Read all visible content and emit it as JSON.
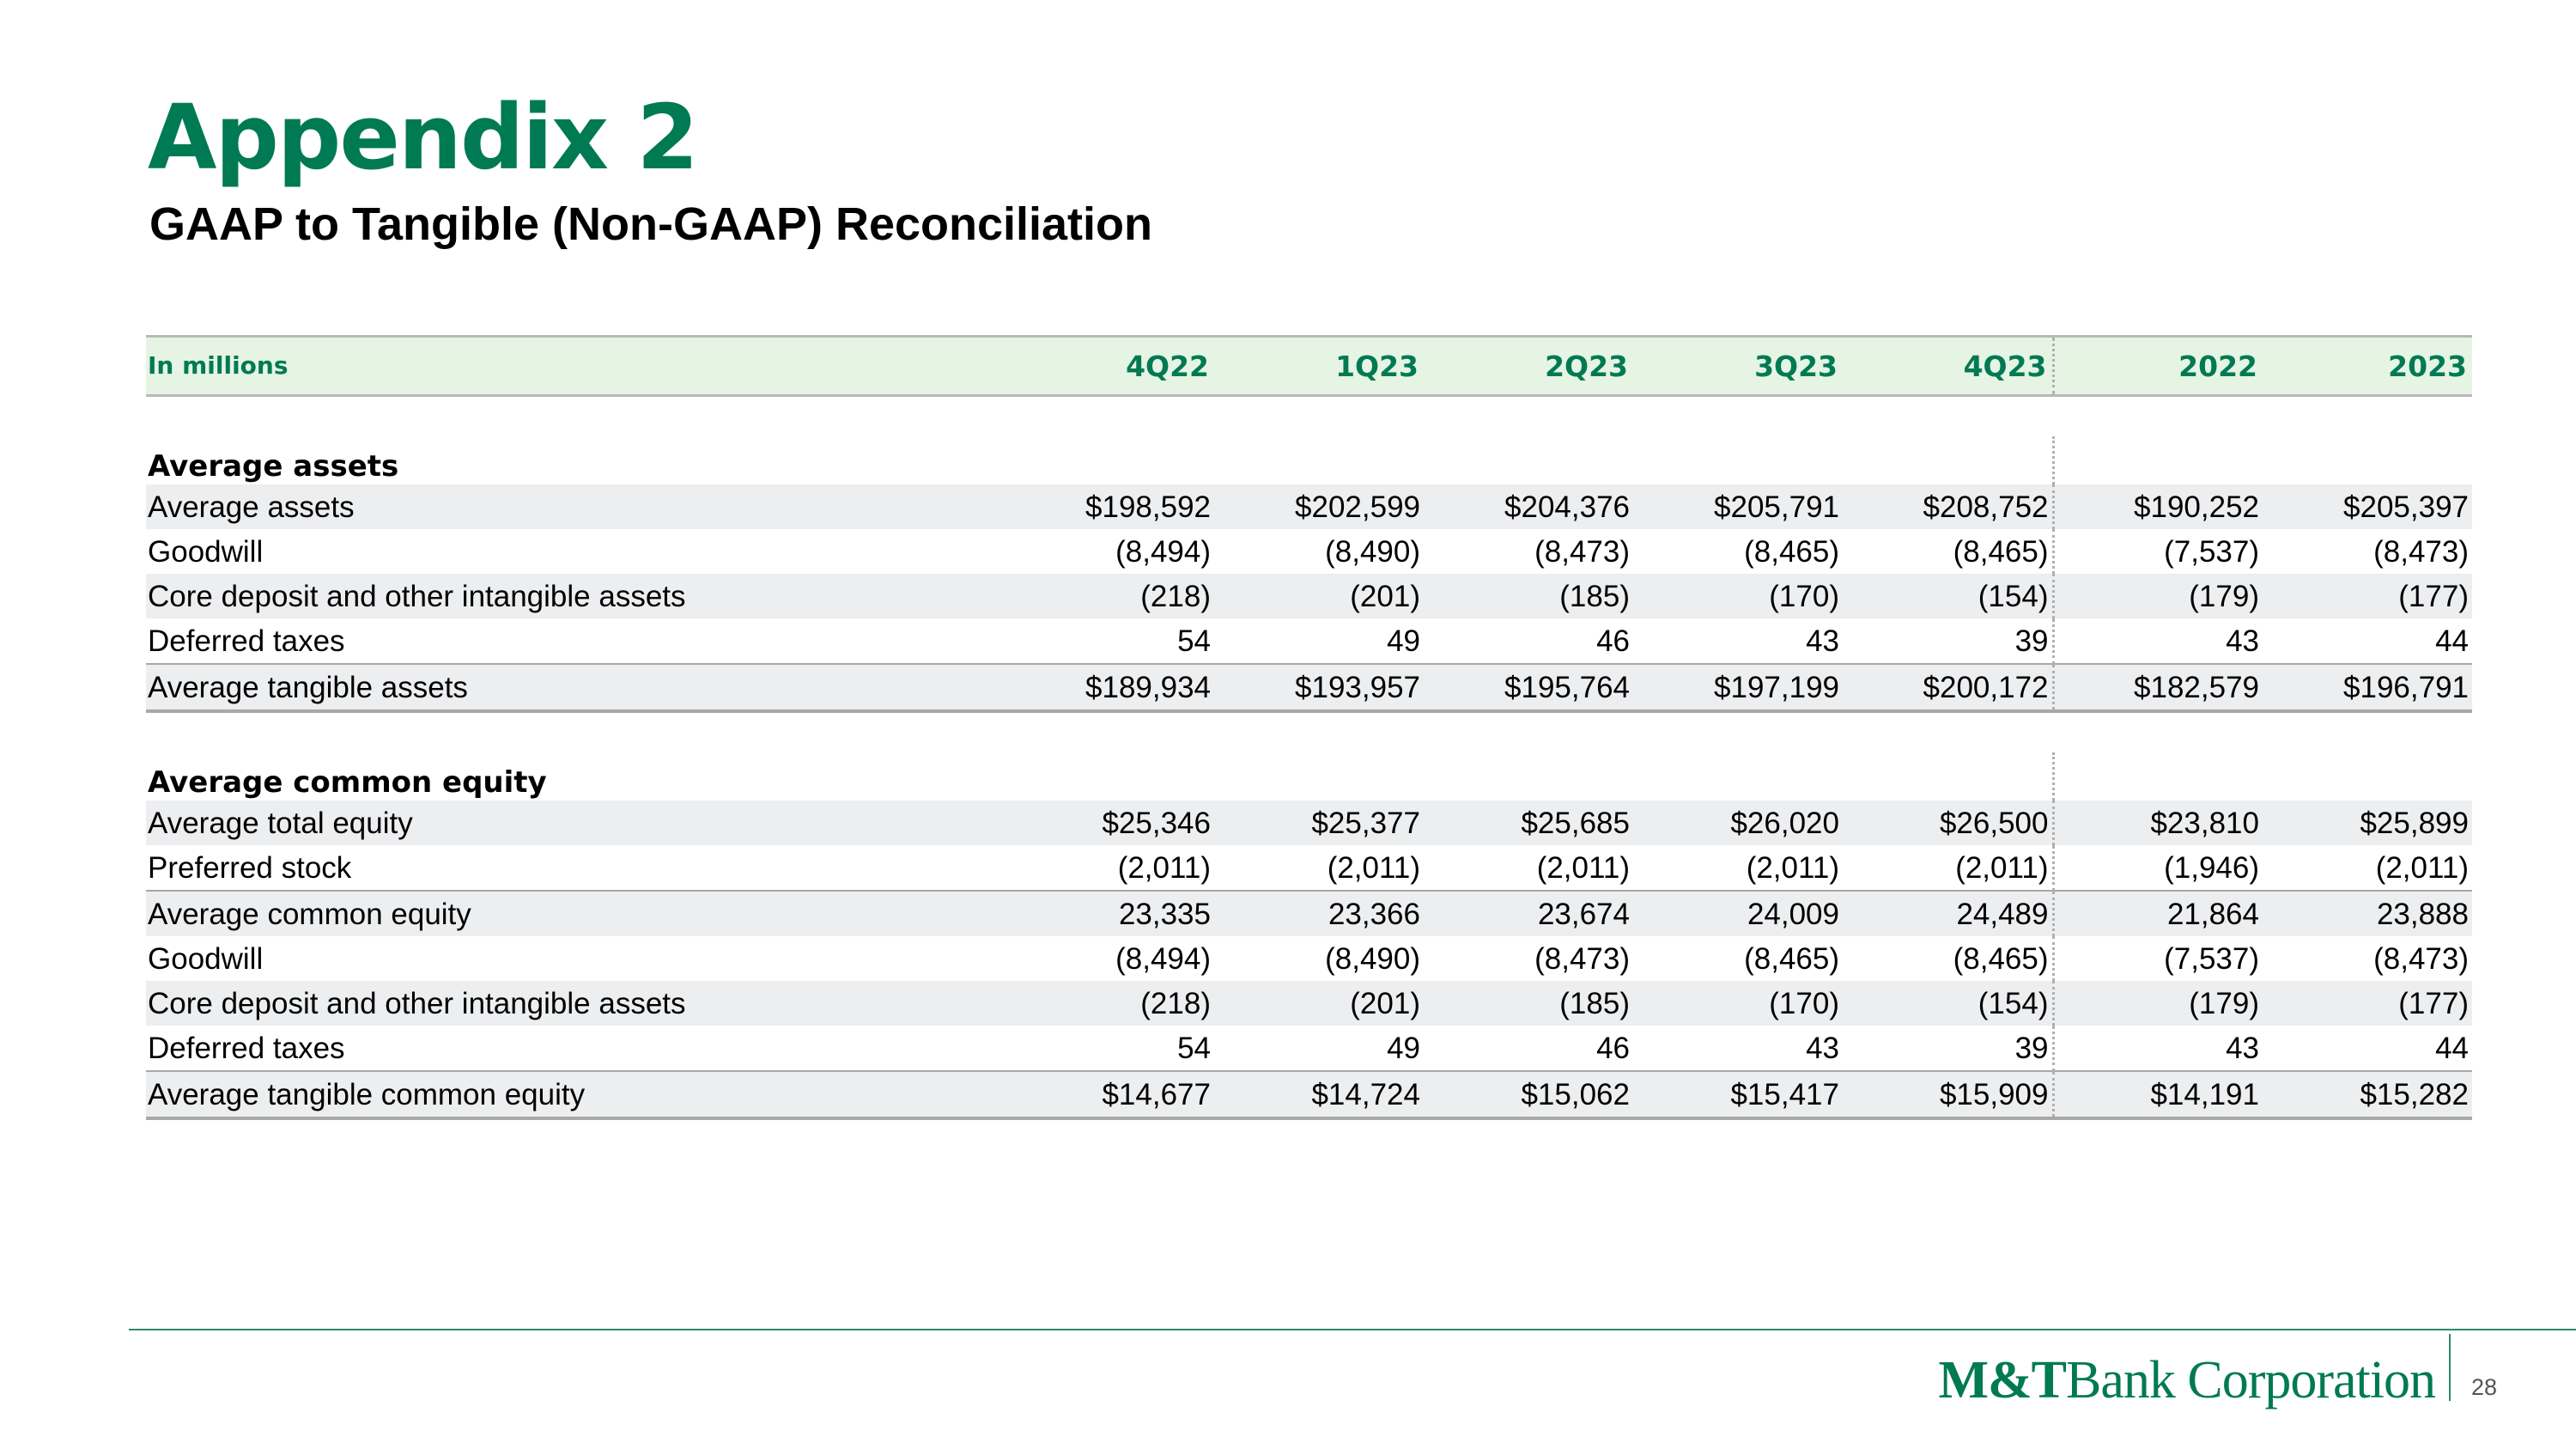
{
  "slide": {
    "title": "Appendix 2",
    "subtitle": "GAAP to Tangible (Non-GAAP) Reconciliation",
    "page_number": "28"
  },
  "brand": {
    "logo_strong": "M&T",
    "logo_rest": "Bank Corporation",
    "accent_color": "#007a53",
    "header_bg": "#e6f4e4",
    "row_shade": "#edeef0"
  },
  "table": {
    "unit_label": "In millions",
    "columns": [
      "4Q22",
      "1Q23",
      "2Q23",
      "3Q23",
      "4Q23",
      "2022",
      "2023"
    ],
    "sections": [
      {
        "heading": "Average assets",
        "rows": [
          {
            "label": "Average assets",
            "values": [
              "$198,592",
              "$202,599",
              "$204,376",
              "$205,791",
              "$208,752",
              "$190,252",
              "$205,397"
            ]
          },
          {
            "label": "Goodwill",
            "values": [
              "(8,494)",
              "(8,490)",
              "(8,473)",
              "(8,465)",
              "(8,465)",
              "(7,537)",
              "(8,473)"
            ]
          },
          {
            "label": "Core deposit and other intangible assets",
            "values": [
              "(218)",
              "(201)",
              "(185)",
              "(170)",
              "(154)",
              "(179)",
              "(177)"
            ]
          },
          {
            "label": "Deferred taxes",
            "values": [
              "54",
              "49",
              "46",
              "43",
              "39",
              "43",
              "44"
            ]
          },
          {
            "label": "Average tangible assets",
            "values": [
              "$189,934",
              "$193,957",
              "$195,764",
              "$197,199",
              "$200,172",
              "$182,579",
              "$196,791"
            ]
          }
        ]
      },
      {
        "heading": "Average common equity",
        "rows": [
          {
            "label": "Average total equity",
            "values": [
              "$25,346",
              "$25,377",
              "$25,685",
              "$26,020",
              "$26,500",
              "$23,810",
              "$25,899"
            ]
          },
          {
            "label": "Preferred stock",
            "values": [
              "(2,011)",
              "(2,011)",
              "(2,011)",
              "(2,011)",
              "(2,011)",
              "(1,946)",
              "(2,011)"
            ]
          },
          {
            "label": "Average common equity",
            "values": [
              "23,335",
              "23,366",
              "23,674",
              "24,009",
              "24,489",
              "21,864",
              "23,888"
            ]
          },
          {
            "label": "Goodwill",
            "values": [
              "(8,494)",
              "(8,490)",
              "(8,473)",
              "(8,465)",
              "(8,465)",
              "(7,537)",
              "(8,473)"
            ]
          },
          {
            "label": "Core deposit and other intangible assets",
            "values": [
              "(218)",
              "(201)",
              "(185)",
              "(170)",
              "(154)",
              "(179)",
              "(177)"
            ]
          },
          {
            "label": "Deferred taxes",
            "values": [
              "54",
              "49",
              "46",
              "43",
              "39",
              "43",
              "44"
            ]
          },
          {
            "label": "Average tangible common equity",
            "values": [
              "$14,677",
              "$14,724",
              "$15,062",
              "$15,417",
              "$15,909",
              "$14,191",
              "$15,282"
            ]
          }
        ]
      }
    ]
  }
}
